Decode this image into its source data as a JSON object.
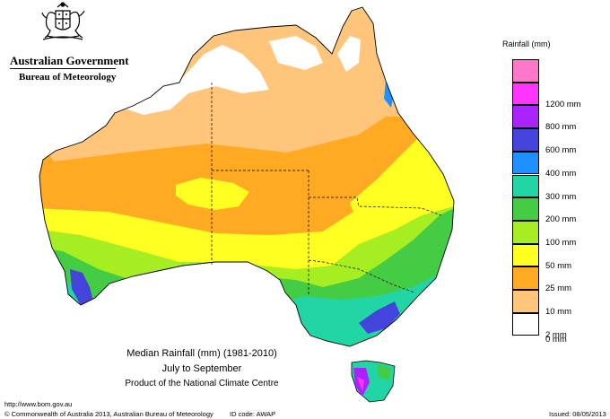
{
  "header": {
    "government": "Australian Government",
    "bureau": "Bureau of Meteorology"
  },
  "map": {
    "title": "Median Rainfall (mm) (1981-2010)",
    "period": "July to September",
    "product": "Product of the National Climate Centre"
  },
  "legend": {
    "title": "Rainfall (mm)",
    "items": [
      {
        "label": "",
        "color": "#ff77c8"
      },
      {
        "label": "1200 mm",
        "color": "#ff33ff"
      },
      {
        "label": "800 mm",
        "color": "#aa22ff"
      },
      {
        "label": "600 mm",
        "color": "#4444dd"
      },
      {
        "label": "400 mm",
        "color": "#1e90ff"
      },
      {
        "label": "300 mm",
        "color": "#22d5a5"
      },
      {
        "label": "200 mm",
        "color": "#44cc44"
      },
      {
        "label": "100 mm",
        "color": "#a6ee22"
      },
      {
        "label": "50 mm",
        "color": "#ffff22"
      },
      {
        "label": "25 mm",
        "color": "#ffaa22"
      },
      {
        "label": "10 mm",
        "color": "#ffc57a"
      },
      {
        "label": "2 mm",
        "color": "#ffffff"
      }
    ],
    "bottom_label": "0 mm"
  },
  "footer": {
    "url": "http://www.bom.gov.au",
    "copyright": "© Commonwealth of Australia 2013, Australian Bureau of Meteorology",
    "id_code": "ID code: AWAP",
    "issued": "Issued: 08/05/2013"
  }
}
